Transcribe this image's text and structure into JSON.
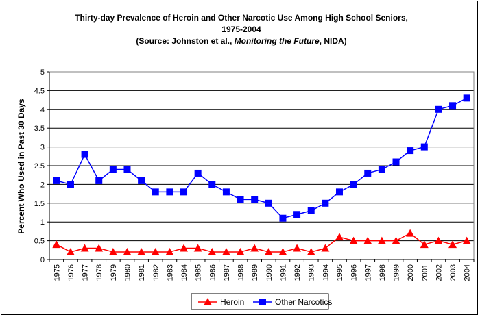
{
  "chart_data": {
    "type": "line",
    "title": {
      "line1": "Thirty-day Prevalence of Heroin and Other Narcotic Use Among High School Seniors,",
      "line2": "1975-2004",
      "line3_pre": "(Source:  Johnston et al., ",
      "line3_italic": "Monitoring the Future",
      "line3_post": ", NIDA)"
    },
    "xlabel": "",
    "ylabel": "Percent Who Used in Past 30 Days",
    "ylim": [
      0,
      5
    ],
    "yticks": [
      "0",
      "0.5",
      "1",
      "1.5",
      "2",
      "2.5",
      "3",
      "3.5",
      "4",
      "4.5",
      "5"
    ],
    "grid": "horizontal",
    "legend_position": "bottom",
    "categories": [
      "1975",
      "1976",
      "1977",
      "1978",
      "1979",
      "1980",
      "1981",
      "1982",
      "1983",
      "1984",
      "1985",
      "1986",
      "1987",
      "1988",
      "1989",
      "1990",
      "1991",
      "1992",
      "1993",
      "1994",
      "1995",
      "1996",
      "1997",
      "1998",
      "1999",
      "2000",
      "2001",
      "2002",
      "2003",
      "2004"
    ],
    "series": [
      {
        "name": "Heroin",
        "color": "#ff0000",
        "marker": "triangle",
        "values": [
          0.4,
          0.2,
          0.3,
          0.3,
          0.2,
          0.2,
          0.2,
          0.2,
          0.2,
          0.3,
          0.3,
          0.2,
          0.2,
          0.2,
          0.3,
          0.2,
          0.2,
          0.3,
          0.2,
          0.3,
          0.6,
          0.5,
          0.5,
          0.5,
          0.5,
          0.7,
          0.4,
          0.5,
          0.4,
          0.5
        ]
      },
      {
        "name": "Other Narcotics",
        "color": "#0000ff",
        "marker": "square",
        "values": [
          2.1,
          2.0,
          2.8,
          2.1,
          2.4,
          2.4,
          2.1,
          1.8,
          1.8,
          1.8,
          2.3,
          2.0,
          1.8,
          1.6,
          1.6,
          1.5,
          1.1,
          1.2,
          1.3,
          1.5,
          1.8,
          2.0,
          2.3,
          2.4,
          2.6,
          2.9,
          3.0,
          4.0,
          4.1,
          4.3
        ]
      }
    ]
  }
}
